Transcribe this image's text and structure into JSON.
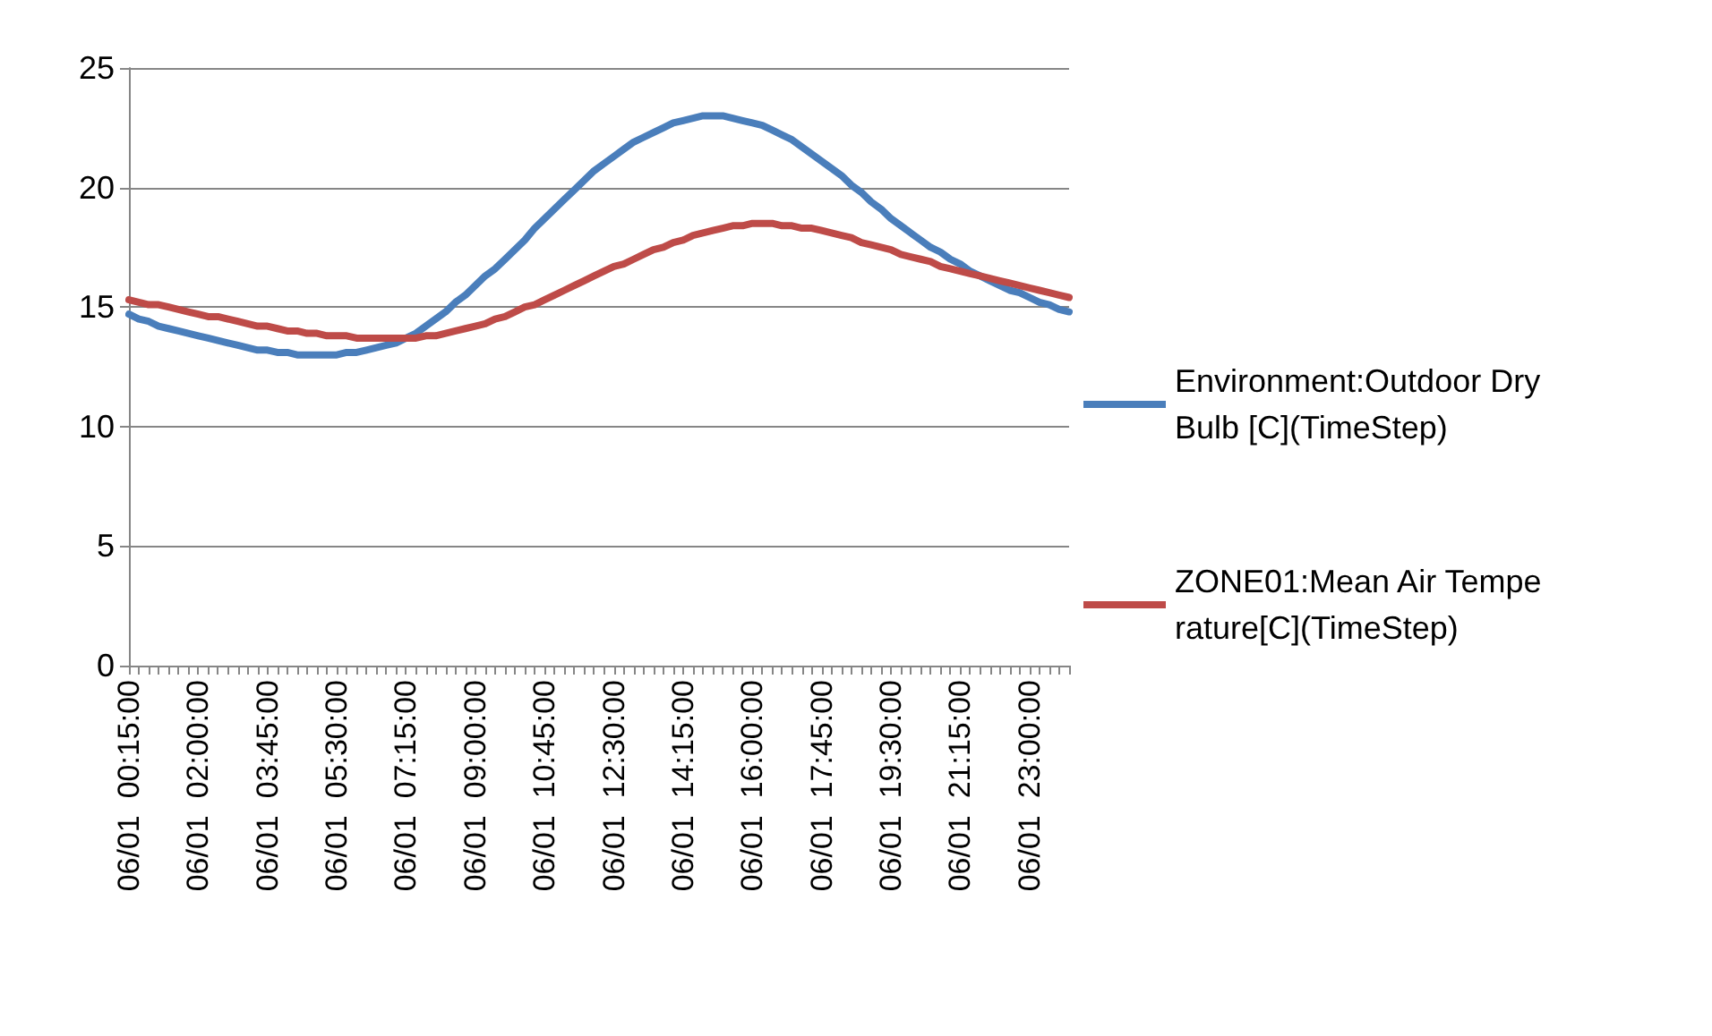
{
  "chart_data": {
    "type": "line",
    "categories": [
      "06/01  00:15:00",
      null,
      null,
      null,
      null,
      null,
      null,
      "06/01  02:00:00",
      null,
      null,
      null,
      null,
      null,
      null,
      "06/01  03:45:00",
      null,
      null,
      null,
      null,
      null,
      null,
      "06/01  05:30:00",
      null,
      null,
      null,
      null,
      null,
      null,
      "06/01  07:15:00",
      null,
      null,
      null,
      null,
      null,
      null,
      "06/01  09:00:00",
      null,
      null,
      null,
      null,
      null,
      null,
      "06/01  10:45:00",
      null,
      null,
      null,
      null,
      null,
      null,
      "06/01  12:30:00",
      null,
      null,
      null,
      null,
      null,
      null,
      "06/01  14:15:00",
      null,
      null,
      null,
      null,
      null,
      null,
      "06/01  16:00:00",
      null,
      null,
      null,
      null,
      null,
      null,
      "06/01  17:45:00",
      null,
      null,
      null,
      null,
      null,
      null,
      "06/01  19:30:00",
      null,
      null,
      null,
      null,
      null,
      null,
      "06/01  21:15:00",
      null,
      null,
      null,
      null,
      null,
      null,
      "06/01  23:00:00",
      null,
      null,
      null,
      null
    ],
    "series": [
      {
        "name": "Environment:Outdoor Dry Bulb [C](TimeStep)",
        "color": "#4a7ebb",
        "values": [
          14.7,
          14.5,
          14.4,
          14.2,
          14.1,
          14.0,
          13.9,
          13.8,
          13.7,
          13.6,
          13.5,
          13.4,
          13.3,
          13.2,
          13.2,
          13.1,
          13.1,
          13.0,
          13.0,
          13.0,
          13.0,
          13.0,
          13.1,
          13.1,
          13.2,
          13.3,
          13.4,
          13.5,
          13.7,
          13.9,
          14.2,
          14.5,
          14.8,
          15.2,
          15.5,
          15.9,
          16.3,
          16.6,
          17.0,
          17.4,
          17.8,
          18.3,
          18.7,
          19.1,
          19.5,
          19.9,
          20.3,
          20.7,
          21.0,
          21.3,
          21.6,
          21.9,
          22.1,
          22.3,
          22.5,
          22.7,
          22.8,
          22.9,
          23.0,
          23.0,
          23.0,
          22.9,
          22.8,
          22.7,
          22.6,
          22.4,
          22.2,
          22.0,
          21.7,
          21.4,
          21.1,
          20.8,
          20.5,
          20.1,
          19.8,
          19.4,
          19.1,
          18.7,
          18.4,
          18.1,
          17.8,
          17.5,
          17.3,
          17.0,
          16.8,
          16.5,
          16.3,
          16.1,
          15.9,
          15.7,
          15.6,
          15.4,
          15.2,
          15.1,
          14.9,
          14.8
        ]
      },
      {
        "name": "ZONE01:Mean Air Temperature[C](TimeStep)",
        "color": "#be4b48",
        "values": [
          15.3,
          15.2,
          15.1,
          15.1,
          15.0,
          14.9,
          14.8,
          14.7,
          14.6,
          14.6,
          14.5,
          14.4,
          14.3,
          14.2,
          14.2,
          14.1,
          14.0,
          14.0,
          13.9,
          13.9,
          13.8,
          13.8,
          13.8,
          13.7,
          13.7,
          13.7,
          13.7,
          13.7,
          13.7,
          13.7,
          13.8,
          13.8,
          13.9,
          14.0,
          14.1,
          14.2,
          14.3,
          14.5,
          14.6,
          14.8,
          15.0,
          15.1,
          15.3,
          15.5,
          15.7,
          15.9,
          16.1,
          16.3,
          16.5,
          16.7,
          16.8,
          17.0,
          17.2,
          17.4,
          17.5,
          17.7,
          17.8,
          18.0,
          18.1,
          18.2,
          18.3,
          18.4,
          18.4,
          18.5,
          18.5,
          18.5,
          18.4,
          18.4,
          18.3,
          18.3,
          18.2,
          18.1,
          18.0,
          17.9,
          17.7,
          17.6,
          17.5,
          17.4,
          17.2,
          17.1,
          17.0,
          16.9,
          16.7,
          16.6,
          16.5,
          16.4,
          16.3,
          16.2,
          16.1,
          16.0,
          15.9,
          15.8,
          15.7,
          15.6,
          15.5,
          15.4
        ]
      }
    ],
    "ylim": [
      0,
      25
    ],
    "yticks": [
      0,
      5,
      10,
      15,
      20,
      25
    ],
    "grid": "y",
    "legend": "right",
    "marker": "none",
    "line_style": "solid"
  }
}
